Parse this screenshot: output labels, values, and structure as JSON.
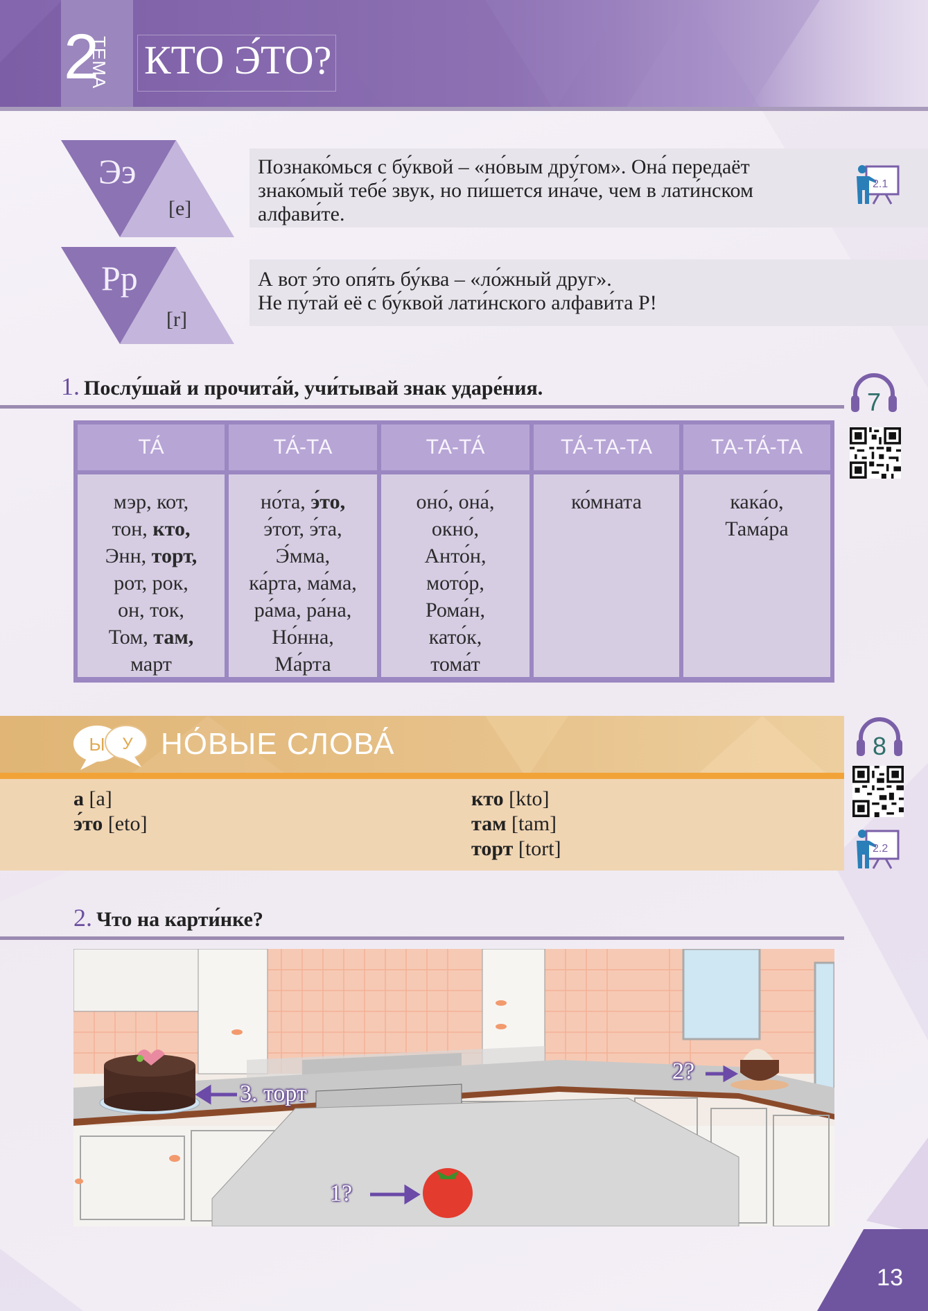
{
  "header": {
    "theme_number": "2",
    "theme_word": "ТЕМА",
    "title": "КТО Э́ТО?"
  },
  "letters": [
    {
      "letter": "Ээ",
      "phonetic": "[e]",
      "text": "Познако́мься с бу́квой – «но́вым дру́гом». Она́ передаёт знако́мый тебе́ звук, но пи́шется ина́че, чем в лати́нском алфави́те."
    },
    {
      "letter": "Рр",
      "phonetic": "[r]",
      "text_lines": [
        "А вот э́то опя́ть бу́ква – «ло́жный друг».",
        "Не пу́тай её с бу́квой лати́нского алфави́та P!"
      ]
    }
  ],
  "icons": {
    "presenter_1": {
      "name": "presenter-board-icon",
      "label": "2.1"
    },
    "presenter_2": {
      "name": "presenter-board-icon",
      "label": "2.2"
    },
    "audio_1": {
      "name": "headphones-icon",
      "label": "7"
    },
    "audio_2": {
      "name": "headphones-icon",
      "label": "8"
    },
    "chat": {
      "name": "speech-bubbles-icon",
      "labels": [
        "Ы",
        "У"
      ]
    }
  },
  "exercise1": {
    "number": "1.",
    "instruction": "Послу́шай и прочита́й, учи́тывай знак ударе́ния.",
    "table": {
      "headers": [
        "ТА́",
        "ТА́-ТА",
        "ТА-ТА́",
        "ТА́-ТА-ТА",
        "ТА-ТА́-ТА"
      ],
      "columns": [
        [
          [
            [
              "мэр, кот,",
              false
            ]
          ],
          [
            [
              "тон, ",
              false
            ],
            [
              "кто,",
              true
            ]
          ],
          [
            [
              "Энн, ",
              false
            ],
            [
              "торт,",
              true
            ]
          ],
          [
            [
              "рот, рок,",
              false
            ]
          ],
          [
            [
              "он, ток,",
              false
            ]
          ],
          [
            [
              "Том, ",
              false
            ],
            [
              "там,",
              true
            ]
          ],
          [
            [
              "март",
              false
            ]
          ]
        ],
        [
          [
            [
              "но́та, ",
              false
            ],
            [
              "э́то,",
              true
            ]
          ],
          [
            [
              "э́тот, э́та,",
              false
            ]
          ],
          [
            [
              "Э́мма,",
              false
            ]
          ],
          [
            [
              "ка́рта, ма́ма,",
              false
            ]
          ],
          [
            [
              "ра́ма, ра́на,",
              false
            ]
          ],
          [
            [
              "Но́нна,",
              false
            ]
          ],
          [
            [
              "Ма́рта",
              false
            ]
          ]
        ],
        [
          [
            [
              "оно́, она́,",
              false
            ]
          ],
          [
            [
              "окно́,",
              false
            ]
          ],
          [
            [
              "Анто́н,",
              false
            ]
          ],
          [
            [
              "мото́р,",
              false
            ]
          ],
          [
            [
              "Рома́н,",
              false
            ]
          ],
          [
            [
              "като́к,",
              false
            ]
          ],
          [
            [
              "тома́т",
              false
            ]
          ]
        ],
        [
          [
            [
              "ко́мната",
              false
            ]
          ]
        ],
        [
          [
            [
              "кака́о,",
              false
            ]
          ],
          [
            [
              "Тама́ра",
              false
            ]
          ]
        ]
      ]
    }
  },
  "new_words": {
    "title": "НО́ВЫЕ СЛОВА́",
    "left": [
      {
        "word": "а",
        "transcription": "[a]"
      },
      {
        "word": "э́то",
        "transcription": "[eto]"
      }
    ],
    "right": [
      {
        "word": "кто",
        "transcription": "[kto]"
      },
      {
        "word": "там",
        "transcription": "[tam]"
      },
      {
        "word": "торт",
        "transcription": "[tort]"
      }
    ]
  },
  "exercise2": {
    "number": "2.",
    "instruction": "Что на карти́нке?",
    "picture_labels": {
      "label_1": "1?",
      "label_2": "2?",
      "label_3": "3. торт"
    }
  },
  "page_number": "13",
  "colors": {
    "purple": "#7c5ea6",
    "light_purple": "#c4b5dc",
    "orange": "#f2a338",
    "peach": "#f0d5b3"
  }
}
